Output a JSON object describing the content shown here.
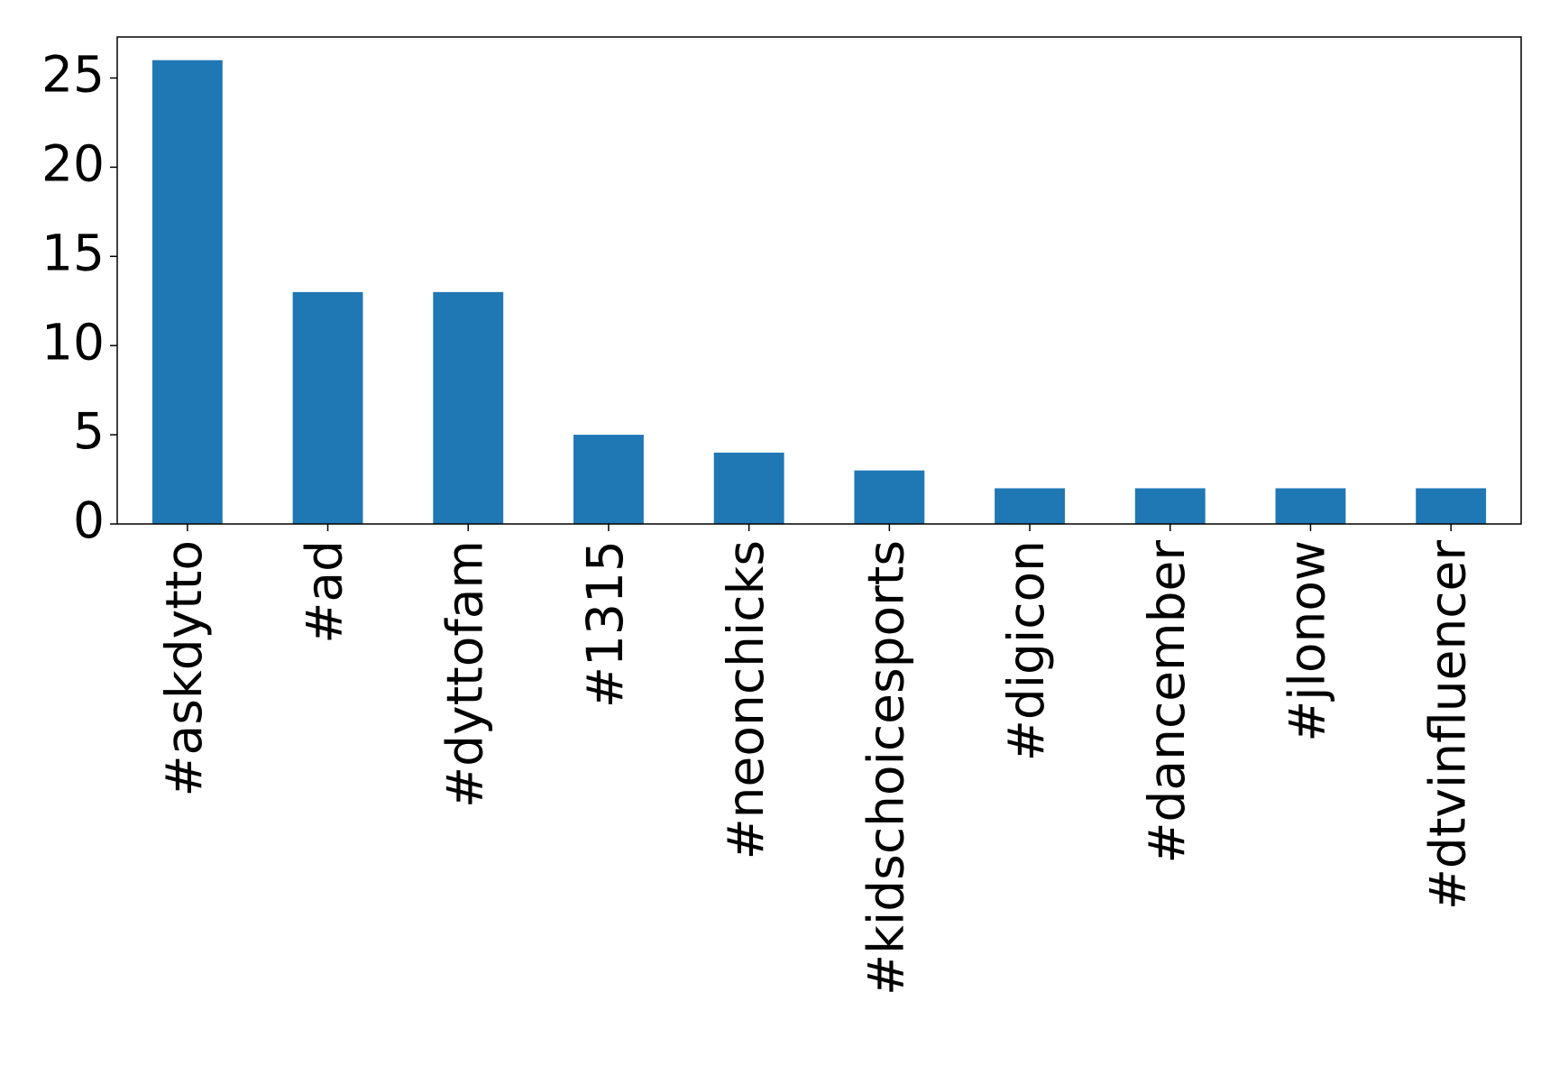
{
  "chart_data": {
    "type": "bar",
    "categories": [
      "#askdytto",
      "#ad",
      "#dyttofam",
      "#1315",
      "#neonchicks",
      "#kidschoicesports",
      "#digicon",
      "#dancember",
      "#jlonow",
      "#dtvinfluencer"
    ],
    "values": [
      26,
      13,
      13,
      5,
      4,
      3,
      2,
      2,
      2,
      2
    ],
    "color": "#1f77b4",
    "ylim": [
      0,
      27.3
    ],
    "yticks": [
      0,
      5,
      10,
      15,
      20,
      25
    ],
    "grid": false
  }
}
